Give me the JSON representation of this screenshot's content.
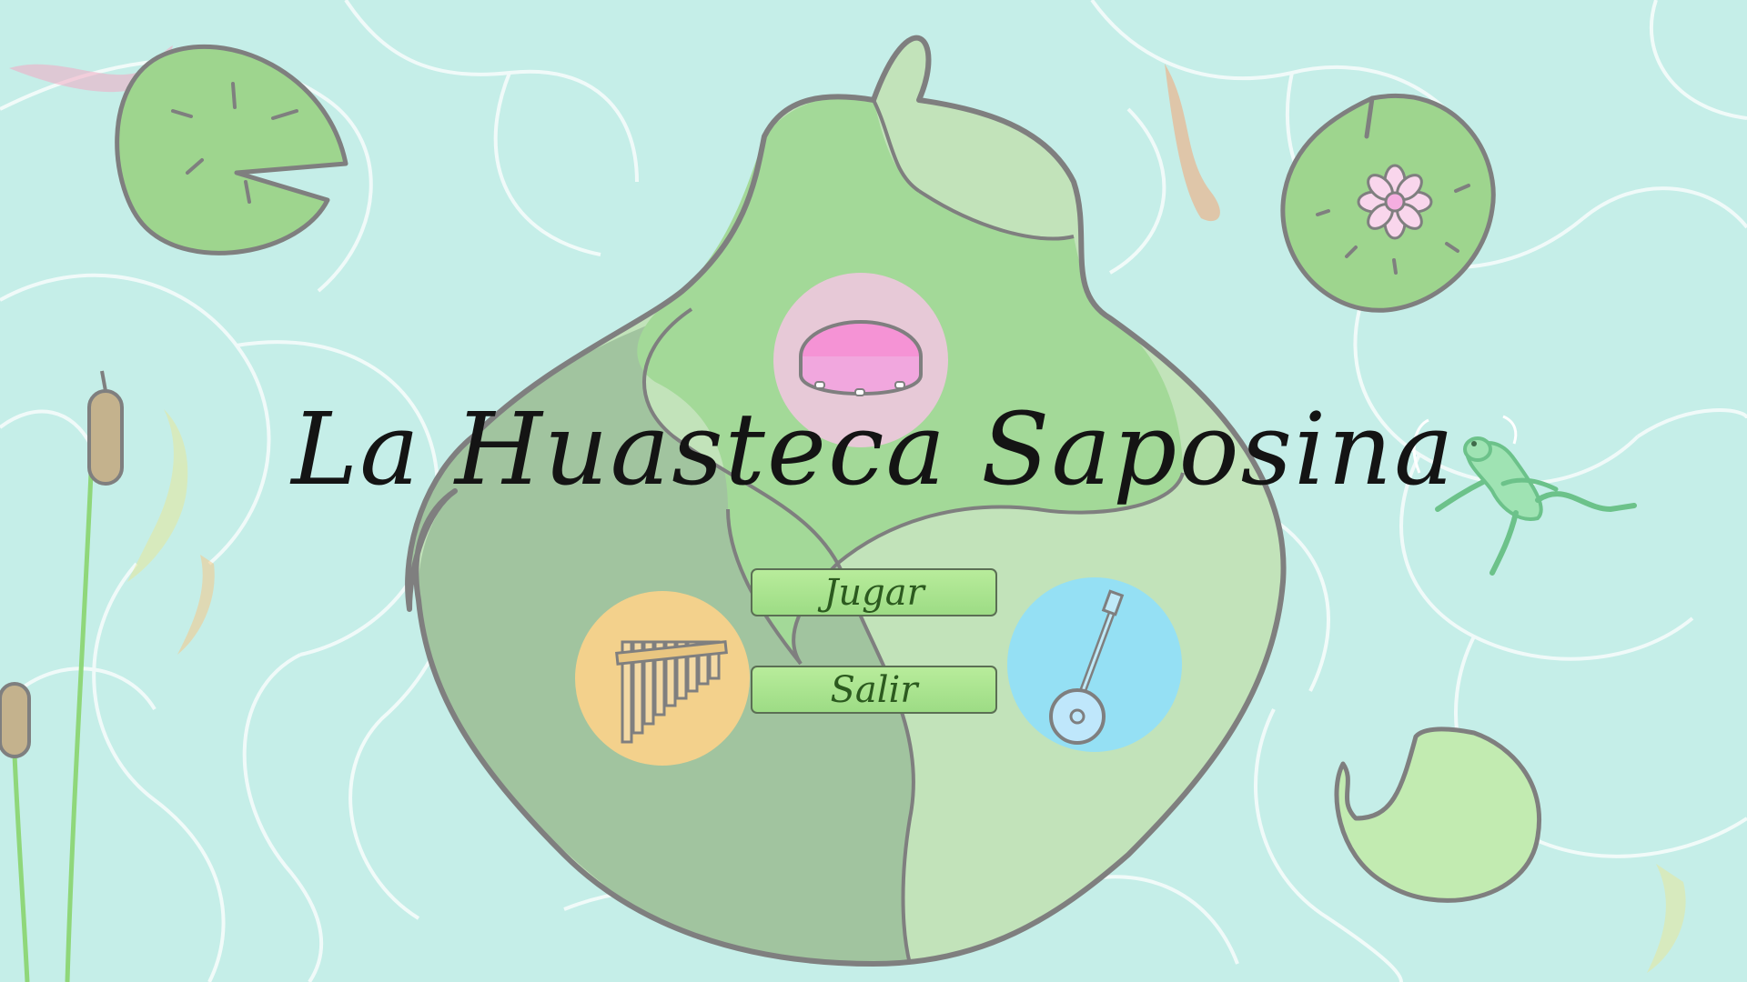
{
  "game": {
    "title": "La Huasteca Saposina"
  },
  "menu": {
    "play_label": "Jugar",
    "exit_label": "Salir"
  },
  "colors": {
    "water": "#c5eee8",
    "lilypad": "#9ed58e",
    "island_light": "#c2e3ba",
    "island_mid": "#a3d998",
    "island_dark": "#a1c49f",
    "outline": "#7f7f7f",
    "button": "#a9e48f",
    "drum_circle": "#e7c9d7",
    "flute_circle": "#f3d18c",
    "banjo_circle": "#95e0f4"
  },
  "icons": [
    "tambourine-icon",
    "pan-flute-icon",
    "banjo-icon",
    "frog-icon",
    "lotus-flower-icon",
    "koi-fish-icon",
    "cattail-icon",
    "lilypad-icon"
  ]
}
